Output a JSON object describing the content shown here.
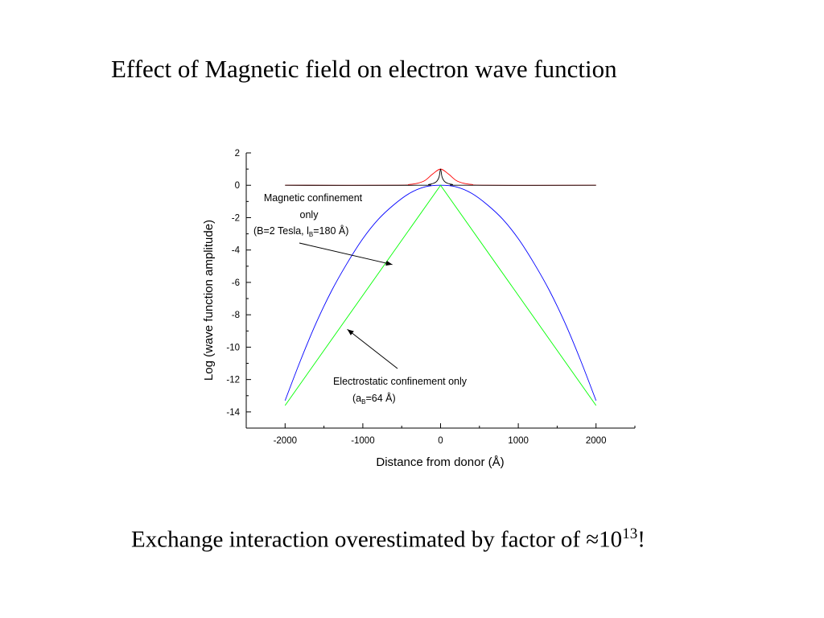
{
  "slide": {
    "title": "Effect of Magnetic field on electron wave function",
    "conclusion_prefix": "Exchange interaction overestimated by factor of ≈10",
    "conclusion_exponent": "13",
    "conclusion_suffix": "!"
  },
  "chart_data": {
    "type": "line",
    "xlabel": "Distance from donor (Å)",
    "ylabel": "Log (wave function amplitude)",
    "xlim": [
      -2500,
      2500
    ],
    "ylim": [
      -15,
      2
    ],
    "xticks": [
      -2000,
      -1000,
      0,
      1000,
      2000
    ],
    "yticks": [
      2,
      0,
      -2,
      -4,
      -6,
      -8,
      -10,
      -12,
      -14
    ],
    "grid": false,
    "series": [
      {
        "color": "#0000ff",
        "x": [
          -2000,
          -1800,
          -1600,
          -1400,
          -1200,
          -1000,
          -800,
          -600,
          -400,
          -200,
          0,
          200,
          400,
          600,
          800,
          1000,
          1200,
          1400,
          1600,
          1800,
          2000
        ],
        "y": [
          -13.3,
          -10.8,
          -8.5,
          -6.5,
          -4.8,
          -3.3,
          -2.1,
          -1.2,
          -0.5,
          -0.1,
          0,
          -0.1,
          -0.5,
          -1.2,
          -2.1,
          -3.3,
          -4.8,
          -6.5,
          -8.5,
          -10.8,
          -13.3
        ]
      },
      {
        "color": "#00ff00",
        "x": [
          -2000,
          0,
          2000
        ],
        "y": [
          -13.6,
          0,
          -13.6
        ]
      },
      {
        "color": "#ff0000",
        "x": [
          -2000,
          -600,
          -400,
          -300,
          -200,
          -100,
          0,
          100,
          200,
          300,
          400,
          600,
          2000
        ],
        "y": [
          0,
          0,
          0.05,
          0.12,
          0.3,
          0.7,
          1.0,
          0.7,
          0.3,
          0.12,
          0.05,
          0,
          0
        ]
      },
      {
        "color": "#000000",
        "x": [
          -2000,
          -300,
          -150,
          -60,
          -20,
          0,
          20,
          60,
          150,
          300,
          2000
        ],
        "y": [
          0,
          0,
          0.05,
          0.2,
          0.5,
          1.0,
          0.5,
          0.2,
          0.05,
          0,
          0
        ]
      }
    ],
    "annotations": [
      {
        "lines": [
          "Magnetic confinement",
          "only",
          "(B=2 Tesla, l",
          "B",
          "=180 Å)"
        ],
        "arrow_to": [
          -620,
          -4.9
        ]
      },
      {
        "lines": [
          "Electrostatic confinement only",
          "(a",
          "B",
          "=64 Å)"
        ],
        "arrow_to": [
          -1200,
          -8.9
        ]
      }
    ]
  }
}
